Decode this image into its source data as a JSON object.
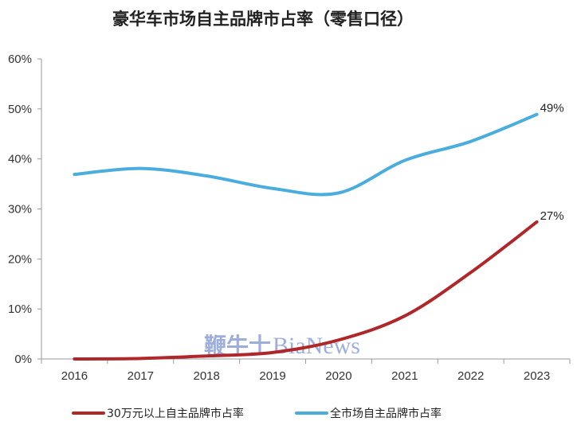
{
  "chart_data": {
    "type": "line",
    "title": "豪华车市场自主品牌市占率（零售口径）",
    "categories": [
      "2016",
      "2017",
      "2018",
      "2019",
      "2020",
      "2021",
      "2022",
      "2023"
    ],
    "y_ticks": [
      "0%",
      "10%",
      "20%",
      "30%",
      "40%",
      "50%",
      "60%"
    ],
    "ylim": [
      0,
      60
    ],
    "y_unit": "%",
    "grid": false,
    "legend_position": "bottom",
    "series": [
      {
        "name": "30万元以上自主品牌市占率",
        "color": "#b0272a",
        "values": [
          0,
          0.1,
          0.6,
          1.3,
          3.8,
          8.6,
          17.3,
          27.4
        ],
        "end_label": "27%"
      },
      {
        "name": "全市场自主品牌市占率",
        "color": "#4aadde",
        "values": [
          36.9,
          38.1,
          36.6,
          34.1,
          33.2,
          39.7,
          43.5,
          48.9
        ],
        "end_label": "49%"
      }
    ]
  },
  "watermark": {
    "cn": "鞭牛士",
    "en": "BiaNews"
  }
}
